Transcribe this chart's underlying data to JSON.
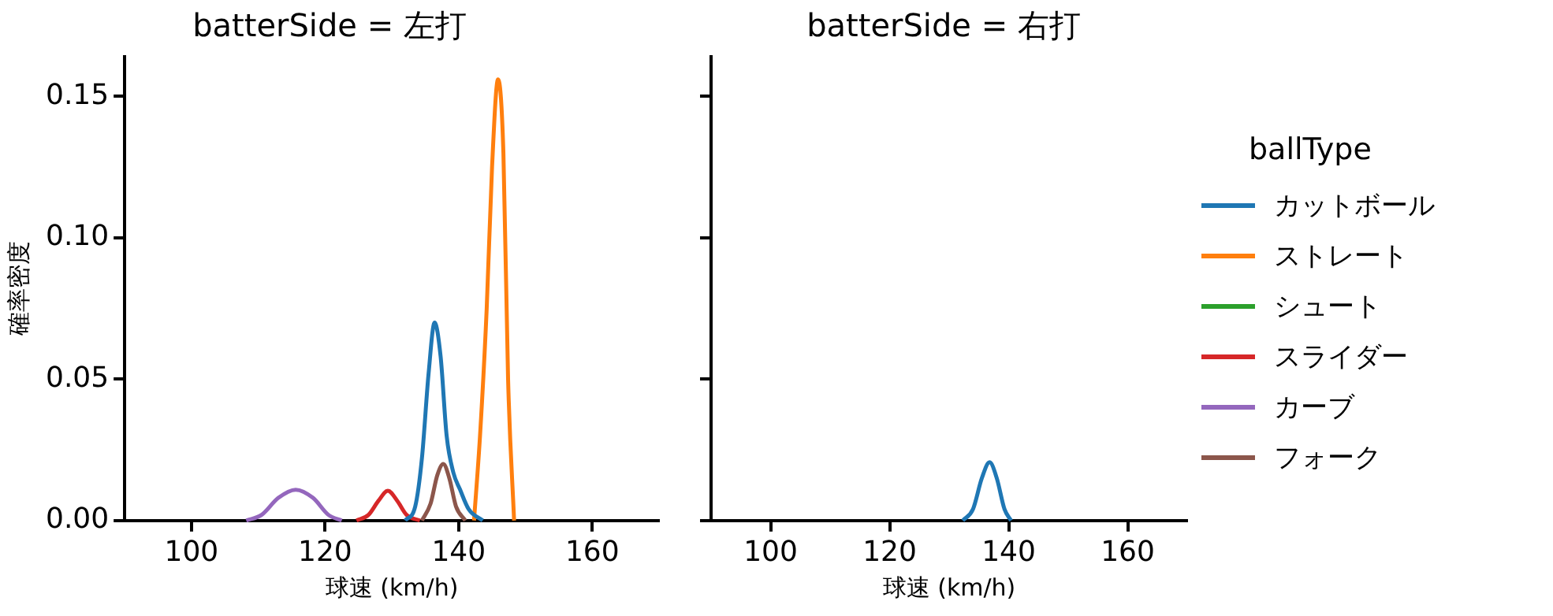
{
  "chart_data": [
    {
      "type": "line",
      "title": "batterSide = 左打",
      "xlabel": "球速 (km/h)",
      "ylabel": "確率密度",
      "xlim": [
        90,
        170
      ],
      "xticks": [
        100,
        120,
        140,
        160
      ],
      "ylim": [
        0,
        0.164
      ],
      "yticks": [
        {
          "value": 0,
          "label": "0.00"
        },
        {
          "value": 0.05,
          "label": "0.05"
        },
        {
          "value": 0.1,
          "label": "0.10"
        },
        {
          "value": 0.15,
          "label": "0.15"
        }
      ],
      "grid": false,
      "legend": "right",
      "legend_title": "ballType",
      "marker": "none",
      "series": [
        {
          "name": "カットボール",
          "color": "#1f77b4",
          "x": [
            132,
            133.5,
            134.5,
            135.5,
            136.4,
            137.3,
            138.2,
            139.2,
            140.2,
            141.5,
            143.6
          ],
          "values": [
            0,
            0.005,
            0.022,
            0.052,
            0.07,
            0.058,
            0.03,
            0.017,
            0.011,
            0.004,
            0
          ]
        },
        {
          "name": "ストレート",
          "color": "#ff7f0e",
          "x": [
            142.3,
            143.2,
            144.2,
            145,
            145.9,
            146.7,
            147.4,
            148.3
          ],
          "values": [
            0,
            0.03,
            0.075,
            0.125,
            0.156,
            0.13,
            0.05,
            0
          ]
        },
        {
          "name": "シュート",
          "color": "#2ca02c"
        },
        {
          "name": "スライダー",
          "color": "#d62728",
          "x": [
            124.7,
            126.5,
            128,
            129.4,
            130.8,
            132.2,
            134.2
          ],
          "values": [
            0,
            0.002,
            0.007,
            0.0105,
            0.007,
            0.002,
            0
          ]
        },
        {
          "name": "カーブ",
          "color": "#9467bd",
          "x": [
            108.2,
            110.5,
            113,
            115.6,
            118.2,
            120.5,
            122.5
          ],
          "values": [
            0,
            0.002,
            0.008,
            0.0109,
            0.008,
            0.002,
            0
          ]
        },
        {
          "name": "フォーク",
          "color": "#8c564b",
          "x": [
            134.5,
            135.8,
            136.8,
            137.7,
            138.6,
            139.6,
            141
          ],
          "values": [
            0,
            0.006,
            0.016,
            0.02,
            0.015,
            0.005,
            0
          ]
        }
      ]
    },
    {
      "type": "line",
      "title": "batterSide = 右打",
      "xlabel": "球速 (km/h)",
      "xlim": [
        90,
        170
      ],
      "xticks": [
        100,
        120,
        140,
        160
      ],
      "ylim": [
        0,
        0.164
      ],
      "yticks": [
        0,
        0.05,
        0.1,
        0.15
      ],
      "tick_labels": "x",
      "grid": false,
      "marker": "none",
      "series": [
        {
          "color": "#1f77b4",
          "x": [
            132.3,
            134,
            135.5,
            136.8,
            138,
            139.3,
            140.4
          ],
          "values": [
            0,
            0.004,
            0.015,
            0.0206,
            0.015,
            0.004,
            0
          ]
        }
      ]
    }
  ]
}
